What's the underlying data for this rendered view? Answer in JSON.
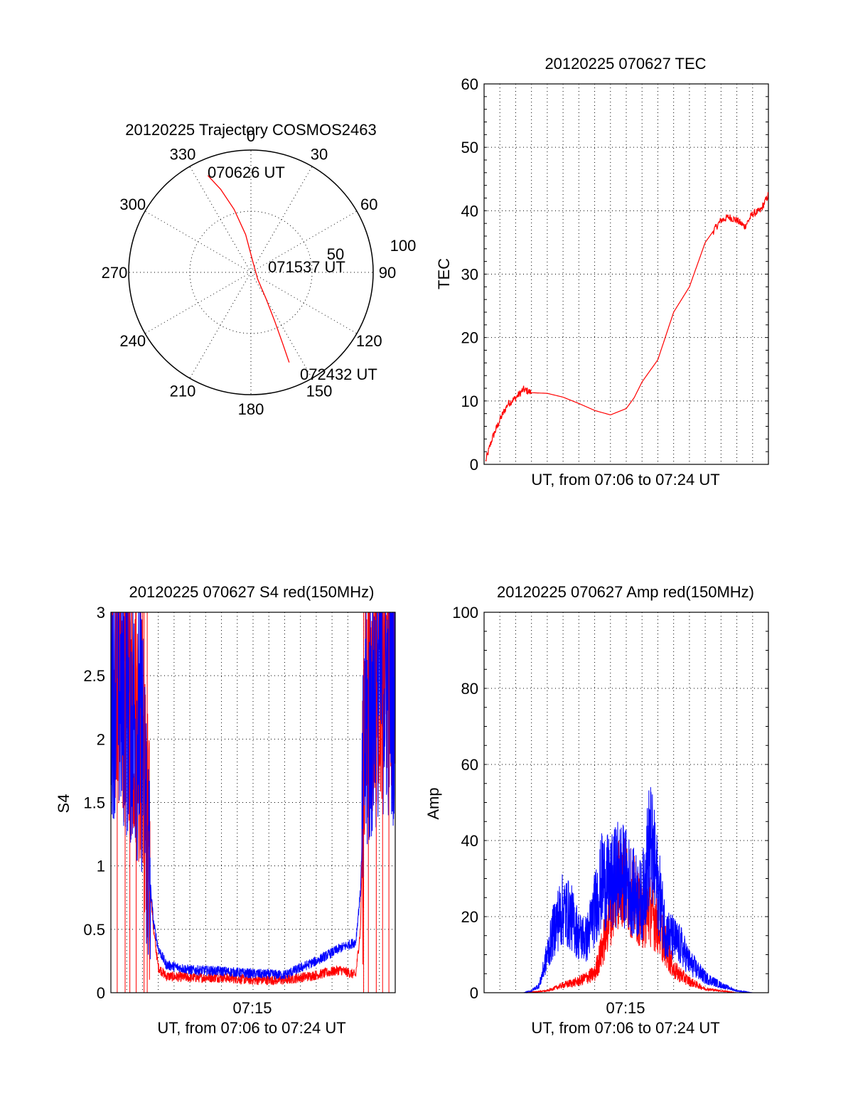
{
  "chart_data": [
    {
      "type": "polar",
      "title": "20120225 Trajectory COSMOS2463",
      "angle_labels": [
        "0",
        "30",
        "60",
        "90",
        "120",
        "150",
        "180",
        "210",
        "240",
        "270",
        "300",
        "330"
      ],
      "radius_labels": [
        "50",
        "100"
      ],
      "trajectory": [
        {
          "az": 336,
          "el": 12
        },
        {
          "az": 340,
          "el": 25
        },
        {
          "az": 345,
          "el": 42
        },
        {
          "az": 352,
          "el": 62
        },
        {
          "az": 10,
          "el": 82
        },
        {
          "az": 135,
          "el": 83
        },
        {
          "az": 150,
          "el": 68
        },
        {
          "az": 154,
          "el": 50
        },
        {
          "az": 156,
          "el": 32
        },
        {
          "az": 157,
          "el": 18
        }
      ],
      "annotations": [
        "070626 UT",
        "071537 UT",
        "072432 UT"
      ],
      "series_color": "#ff0000"
    },
    {
      "type": "line",
      "title": "20120225 070627 TEC",
      "xlabel": "UT, from 07:06 to 07:24 UT",
      "ylabel": "TEC",
      "ylim": [
        0,
        60
      ],
      "xlim_minutes": [
        0,
        18
      ],
      "yticks": [
        "0",
        "10",
        "20",
        "30",
        "40",
        "50",
        "60"
      ],
      "x": [
        0.1,
        0.5,
        1.0,
        1.5,
        2.0,
        2.5,
        3.0,
        4.0,
        5.0,
        6.0,
        7.0,
        8.0,
        9.0,
        9.5,
        10.0,
        11.0,
        12.0,
        13.0,
        14.0,
        15.0,
        15.5,
        16.0,
        16.5,
        17.0,
        17.5,
        18.0
      ],
      "y": [
        0.5,
        4,
        7,
        9.5,
        10.5,
        11.8,
        11.3,
        11.2,
        10.6,
        9.6,
        8.5,
        7.8,
        8.8,
        10.5,
        13,
        16.5,
        24,
        28,
        35,
        38.5,
        39,
        38.5,
        37.5,
        39.5,
        40,
        42.5
      ],
      "series_color": "#ff0000"
    },
    {
      "type": "line",
      "title": "20120225 070627 S4 red(150MHz)",
      "xlabel": "UT, from 07:06 to 07:24 UT",
      "ylabel": "S4",
      "ylim": [
        0,
        3
      ],
      "xlim_minutes": [
        0,
        18
      ],
      "yticks": [
        "0",
        "0.5",
        "1",
        "1.5",
        "2",
        "2.5",
        "3"
      ],
      "xtick_label": "07:15",
      "series": [
        {
          "color": "#ff0000",
          "x": [
            0,
            1,
            2,
            2.4,
            2.7,
            3.0,
            3.5,
            5,
            7,
            9,
            11,
            13,
            14.5,
            15.5,
            15.8,
            16.1,
            17,
            18
          ],
          "y": [
            2.6,
            2.4,
            2.0,
            1.0,
            0.5,
            0.2,
            0.13,
            0.12,
            0.12,
            0.1,
            0.1,
            0.14,
            0.18,
            0.14,
            0.5,
            2.2,
            2.6,
            2.6
          ]
        },
        {
          "color": "#0000ff",
          "x": [
            0,
            1,
            2,
            2.4,
            2.7,
            3.0,
            3.5,
            5,
            7,
            9,
            11,
            13,
            14.5,
            15.5,
            15.8,
            16.1,
            17,
            18
          ],
          "y": [
            2.5,
            2.3,
            2.0,
            1.0,
            0.55,
            0.35,
            0.22,
            0.18,
            0.17,
            0.15,
            0.14,
            0.25,
            0.35,
            0.4,
            0.8,
            2.0,
            2.5,
            2.4
          ]
        }
      ]
    },
    {
      "type": "line",
      "title": "20120225 070627 Amp red(150MHz)",
      "xlabel": "UT, from 07:06 to 07:24 UT",
      "ylabel": "Amp",
      "ylim": [
        0,
        100
      ],
      "xlim_minutes": [
        0,
        18
      ],
      "yticks": [
        "0",
        "20",
        "40",
        "60",
        "80",
        "100"
      ],
      "xtick_label": "07:15",
      "series": [
        {
          "color": "#ff0000",
          "x": [
            0,
            2.5,
            4,
            5,
            6,
            7,
            7.5,
            8,
            8.5,
            9,
            9.5,
            10,
            10.5,
            11,
            11.5,
            12,
            13,
            14,
            15,
            16,
            17,
            18
          ],
          "y": [
            0,
            0,
            0.5,
            2,
            3,
            5,
            12,
            22,
            30,
            28,
            25,
            20,
            22,
            18,
            12,
            6,
            3,
            1,
            0.5,
            0,
            0,
            0
          ]
        },
        {
          "color": "#0000ff",
          "x": [
            0,
            2.5,
            3,
            3.5,
            4,
            4.5,
            5,
            5.5,
            6,
            6.5,
            7,
            7.5,
            8,
            8.5,
            9,
            9.5,
            10,
            10.5,
            11,
            11.5,
            12,
            12.5,
            13,
            14,
            15,
            16,
            17,
            18
          ],
          "y": [
            0,
            0,
            0.5,
            2,
            10,
            18,
            22,
            20,
            15,
            14,
            22,
            30,
            28,
            32,
            30,
            26,
            24,
            40,
            28,
            16,
            14,
            12,
            8,
            4,
            2,
            0.5,
            0,
            0
          ]
        }
      ]
    }
  ]
}
